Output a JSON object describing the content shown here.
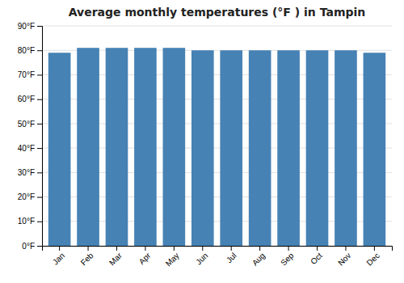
{
  "chart_data": {
    "type": "bar",
    "title": "Average monthly temperatures (°F ) in Tampin",
    "categories": [
      "Jan",
      "Feb",
      "Mar",
      "Apr",
      "May",
      "Jun",
      "Jul",
      "Aug",
      "Sep",
      "Oct",
      "Nov",
      "Dec"
    ],
    "values": [
      79,
      81,
      81,
      81,
      81,
      80,
      80,
      80,
      80,
      80,
      80,
      79
    ],
    "ylim": [
      0,
      90
    ],
    "yticks": [
      {
        "value": 0,
        "label": "0°F"
      },
      {
        "value": 10,
        "label": "10°F"
      },
      {
        "value": 20,
        "label": "20°F"
      },
      {
        "value": 30,
        "label": "30°F"
      },
      {
        "value": 40,
        "label": "40°F"
      },
      {
        "value": 50,
        "label": "50°F"
      },
      {
        "value": 60,
        "label": "60°F"
      },
      {
        "value": 70,
        "label": "70°F"
      },
      {
        "value": 80,
        "label": "80°F"
      },
      {
        "value": 90,
        "label": "90°F"
      }
    ],
    "grid": true
  }
}
